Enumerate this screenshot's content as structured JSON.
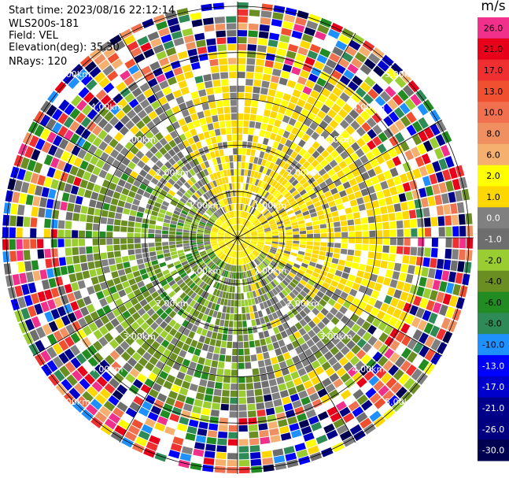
{
  "info": {
    "start_time": "Start time: 2023/08/16 22:12:14",
    "station": "WLS200s-181",
    "field": "Field: VEL",
    "elevation": "Elevation(deg): 35.30",
    "nrays": "NRays: 120"
  },
  "colorbar": {
    "unit": "m/s",
    "levels": [
      {
        "label": "26.0",
        "color": "#f0308a"
      },
      {
        "label": "21.0",
        "color": "#e8001a"
      },
      {
        "label": "17.0",
        "color": "#f03030"
      },
      {
        "label": "13.0",
        "color": "#f05030"
      },
      {
        "label": "10.0",
        "color": "#f07050"
      },
      {
        "label": "8.0",
        "color": "#f09060"
      },
      {
        "label": "6.0",
        "color": "#f5b070"
      },
      {
        "label": "2.0",
        "color": "#ffff00"
      },
      {
        "label": "1.0",
        "color": "#ffd700"
      },
      {
        "label": "0.0",
        "color": "#808080"
      },
      {
        "label": "-1.0",
        "color": "#6e6e6e"
      },
      {
        "label": "-2.0",
        "color": "#9acd32"
      },
      {
        "label": "-4.0",
        "color": "#6b8e23"
      },
      {
        "label": "-6.0",
        "color": "#228b22"
      },
      {
        "label": "-8.0",
        "color": "#2e8b57"
      },
      {
        "label": "-10.0",
        "color": "#1e90ff"
      },
      {
        "label": "-13.0",
        "color": "#0000ff"
      },
      {
        "label": "-17.0",
        "color": "#0000cd"
      },
      {
        "label": "-21.0",
        "color": "#00008b"
      },
      {
        "label": "-26.0",
        "color": "#000080"
      },
      {
        "label": "-30.0",
        "color": "#000050"
      }
    ]
  },
  "chart_data": {
    "type": "heatmap",
    "projection": "polar PPI",
    "field": "VEL",
    "nrays": 120,
    "range_rings_km": [
      1.0,
      2.0,
      3.0,
      4.0,
      5.0
    ],
    "range_ring_labels": [
      "1.00km",
      "2.00km",
      "3.00km",
      "4.00km",
      "5.00km"
    ],
    "max_range_km": 5.1,
    "data_summary": {
      "upper_right_sector": "mostly positive 1–2 m/s (yellow)",
      "lower_left_sector": "mostly negative -2 to -6 m/s (green)",
      "outer_ranges": "noisy values across full scale"
    }
  }
}
